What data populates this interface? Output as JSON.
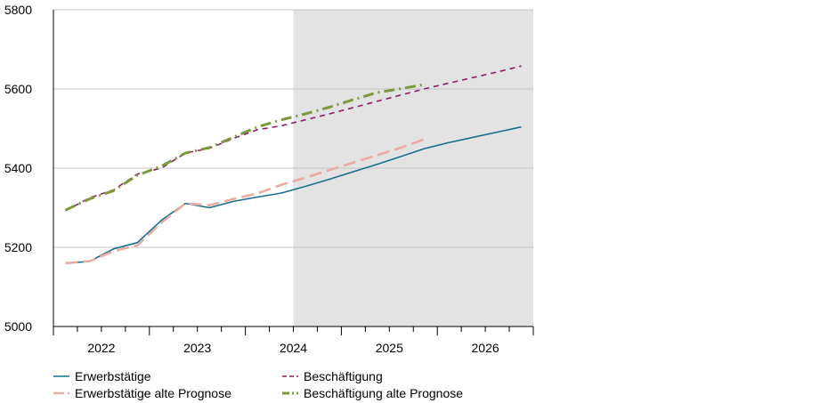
{
  "chart_data": {
    "type": "line",
    "title": "",
    "xlabel": "",
    "ylabel": "",
    "ylim": [
      5000,
      5800
    ],
    "yticks": [
      5000,
      5200,
      5400,
      5600,
      5800
    ],
    "year_labels": [
      "2022",
      "2023",
      "2024",
      "2025",
      "2026"
    ],
    "x_range": [
      2021.5,
      2026.5
    ],
    "forecast_shading_from": 2024.0,
    "grid": "horizontal",
    "legend_position": "bottom",
    "series": [
      {
        "name": "Erwerbstätige",
        "color": "#1a6e8a",
        "style": "solid",
        "points": [
          [
            2021.625,
            5160
          ],
          [
            2021.875,
            5164
          ],
          [
            2022.125,
            5196
          ],
          [
            2022.375,
            5212
          ],
          [
            2022.625,
            5268
          ],
          [
            2022.875,
            5311
          ],
          [
            2023.125,
            5300
          ],
          [
            2023.375,
            5316
          ],
          [
            2023.625,
            5327
          ],
          [
            2023.875,
            5337
          ],
          [
            2024.125,
            5354
          ],
          [
            2024.375,
            5372
          ],
          [
            2024.625,
            5391
          ],
          [
            2024.875,
            5410
          ],
          [
            2025.125,
            5430
          ],
          [
            2025.375,
            5450
          ],
          [
            2025.625,
            5465
          ],
          [
            2025.875,
            5478
          ],
          [
            2026.125,
            5491
          ],
          [
            2026.375,
            5504
          ]
        ]
      },
      {
        "name": "Erwerbstätige alte Prognose",
        "color": "#e8aca4",
        "style": "dash",
        "points": [
          [
            2021.625,
            5160
          ],
          [
            2021.875,
            5165
          ],
          [
            2022.125,
            5190
          ],
          [
            2022.375,
            5205
          ],
          [
            2022.625,
            5262
          ],
          [
            2022.875,
            5311
          ],
          [
            2023.125,
            5306
          ],
          [
            2023.375,
            5322
          ],
          [
            2023.625,
            5336
          ],
          [
            2023.875,
            5358
          ],
          [
            2024.125,
            5376
          ],
          [
            2024.375,
            5395
          ],
          [
            2024.625,
            5414
          ],
          [
            2024.875,
            5433
          ],
          [
            2025.125,
            5452
          ],
          [
            2025.375,
            5474
          ]
        ]
      },
      {
        "name": "Beschäftigung",
        "color": "#8b1a6b",
        "style": "shortdash",
        "points": [
          [
            2021.625,
            5292
          ],
          [
            2021.875,
            5325
          ],
          [
            2022.125,
            5345
          ],
          [
            2022.375,
            5385
          ],
          [
            2022.625,
            5400
          ],
          [
            2022.875,
            5438
          ],
          [
            2023.125,
            5450
          ],
          [
            2023.375,
            5475
          ],
          [
            2023.625,
            5497
          ],
          [
            2023.875,
            5507
          ],
          [
            2024.125,
            5522
          ],
          [
            2024.375,
            5537
          ],
          [
            2024.625,
            5553
          ],
          [
            2024.875,
            5569
          ],
          [
            2025.125,
            5585
          ],
          [
            2025.375,
            5601
          ],
          [
            2025.625,
            5615
          ],
          [
            2025.875,
            5629
          ],
          [
            2026.125,
            5643
          ],
          [
            2026.375,
            5658
          ]
        ]
      },
      {
        "name": "Beschäftigung alte Prognose",
        "color": "#7c9a3c",
        "style": "dashdot",
        "points": [
          [
            2021.625,
            5294
          ],
          [
            2021.875,
            5322
          ],
          [
            2022.125,
            5343
          ],
          [
            2022.375,
            5382
          ],
          [
            2022.625,
            5405
          ],
          [
            2022.875,
            5438
          ],
          [
            2023.125,
            5452
          ],
          [
            2023.375,
            5478
          ],
          [
            2023.625,
            5504
          ],
          [
            2023.875,
            5522
          ],
          [
            2024.125,
            5537
          ],
          [
            2024.375,
            5554
          ],
          [
            2024.625,
            5573
          ],
          [
            2024.875,
            5591
          ],
          [
            2025.125,
            5601
          ],
          [
            2025.375,
            5612
          ]
        ]
      }
    ]
  }
}
